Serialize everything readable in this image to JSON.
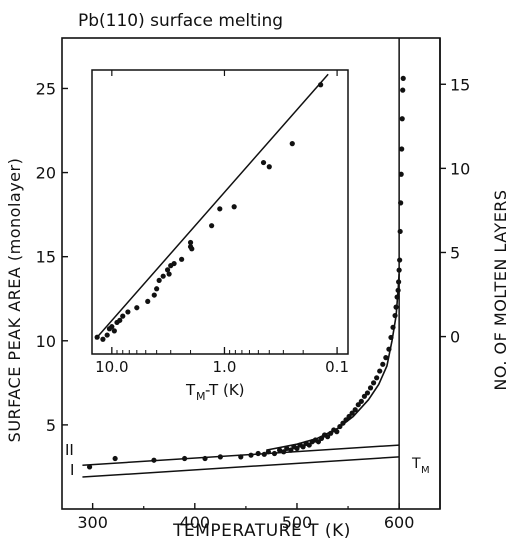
{
  "chart_data": [
    {
      "type": "scatter",
      "title": "Pb(110) surface melting",
      "xlabel": "TEMPERATURE  T  (K)",
      "ylabel": "SURFACE PEAK AREA (monolayer)",
      "ylabel_right": "NO. OF MOLTEN LAYERS",
      "xlim": [
        270,
        640
      ],
      "ylim": [
        0,
        28
      ],
      "x_ticks": [
        "300",
        "400",
        "500",
        "600"
      ],
      "y_ticks": [
        "5",
        "10",
        "15",
        "20",
        "25"
      ],
      "y2_ticks": [
        "0",
        "5",
        "10",
        "15"
      ],
      "y2_tick_positions_in_y_units": [
        10.25,
        15.25,
        20.25,
        25.25
      ],
      "annotations": {
        "line_I": "I",
        "line_II": "II",
        "melting_temp": "T",
        "melting_temp_sub": "M"
      },
      "reference_lines": [
        {
          "name": "I",
          "points": [
            [
              290,
              1.9
            ],
            [
              600,
              3.1
            ]
          ]
        },
        {
          "name": "II",
          "points": [
            [
              290,
              2.6
            ],
            [
              600,
              3.8
            ]
          ]
        }
      ],
      "vertical_line_x": 600,
      "fit_curve": [
        [
          470,
          3.5
        ],
        [
          500,
          3.85
        ],
        [
          520,
          4.2
        ],
        [
          540,
          4.8
        ],
        [
          555,
          5.5
        ],
        [
          570,
          6.5
        ],
        [
          580,
          7.4
        ],
        [
          588,
          8.5
        ],
        [
          593,
          10
        ],
        [
          597,
          11.5
        ],
        [
          599,
          13
        ],
        [
          600,
          14
        ]
      ],
      "points": [
        [
          297,
          2.5
        ],
        [
          322,
          3.0
        ],
        [
          360,
          2.9
        ],
        [
          390,
          3.0
        ],
        [
          410,
          3.0
        ],
        [
          425,
          3.1
        ],
        [
          445,
          3.1
        ],
        [
          455,
          3.2
        ],
        [
          462,
          3.3
        ],
        [
          468,
          3.25
        ],
        [
          472,
          3.4
        ],
        [
          478,
          3.3
        ],
        [
          483,
          3.5
        ],
        [
          487,
          3.4
        ],
        [
          490,
          3.6
        ],
        [
          494,
          3.5
        ],
        [
          497,
          3.7
        ],
        [
          500,
          3.6
        ],
        [
          503,
          3.8
        ],
        [
          506,
          3.7
        ],
        [
          509,
          3.9
        ],
        [
          512,
          3.8
        ],
        [
          515,
          4.0
        ],
        [
          518,
          4.1
        ],
        [
          521,
          4.0
        ],
        [
          524,
          4.2
        ],
        [
          527,
          4.4
        ],
        [
          530,
          4.3
        ],
        [
          533,
          4.5
        ],
        [
          536,
          4.7
        ],
        [
          539,
          4.6
        ],
        [
          542,
          4.9
        ],
        [
          545,
          5.1
        ],
        [
          548,
          5.3
        ],
        [
          551,
          5.5
        ],
        [
          554,
          5.7
        ],
        [
          557,
          5.9
        ],
        [
          560,
          6.2
        ],
        [
          563,
          6.4
        ],
        [
          566,
          6.7
        ],
        [
          569,
          6.9
        ],
        [
          572,
          7.2
        ],
        [
          575,
          7.5
        ],
        [
          578,
          7.8
        ],
        [
          581,
          8.2
        ],
        [
          584,
          8.6
        ],
        [
          587,
          9.0
        ],
        [
          590,
          9.5
        ],
        [
          592,
          10.2
        ],
        [
          594,
          10.8
        ],
        [
          596,
          11.5
        ],
        [
          597,
          12.0
        ],
        [
          598,
          12.6
        ],
        [
          599,
          13.0
        ],
        [
          599.5,
          13.5
        ],
        [
          600,
          14.2
        ],
        [
          600.5,
          14.8
        ],
        [
          601,
          16.5
        ],
        [
          601.5,
          18.2
        ],
        [
          602,
          19.9
        ],
        [
          602.5,
          21.4
        ],
        [
          603,
          23.2
        ],
        [
          603.5,
          24.9
        ],
        [
          604,
          25.6
        ]
      ]
    },
    {
      "type": "scatter",
      "title": "",
      "xlabel": "T",
      "xlabel_sub": "M",
      "xlabel_rest": "-T  (K)",
      "x_scale": "log",
      "x_reversed": true,
      "xlim": [
        15,
        0.08
      ],
      "x_ticks": [
        "10.0",
        "1.0",
        "0.1"
      ],
      "x_tick_values": [
        10,
        1,
        0.1
      ],
      "ylim": [
        6,
        19.5
      ],
      "fit_line": [
        [
          14,
          6.7
        ],
        [
          0.12,
          19.3
        ]
      ],
      "points": [
        [
          13.5,
          6.8
        ],
        [
          12,
          6.7
        ],
        [
          11,
          6.9
        ],
        [
          10.5,
          7.2
        ],
        [
          10,
          7.3
        ],
        [
          9.5,
          7.1
        ],
        [
          9,
          7.5
        ],
        [
          8.5,
          7.6
        ],
        [
          8,
          7.8
        ],
        [
          7.2,
          8.0
        ],
        [
          6,
          8.2
        ],
        [
          4.8,
          8.5
        ],
        [
          4.2,
          8.8
        ],
        [
          4,
          9.1
        ],
        [
          3.8,
          9.5
        ],
        [
          3.5,
          9.7
        ],
        [
          3.2,
          10.0
        ],
        [
          3.1,
          9.8
        ],
        [
          3.0,
          10.2
        ],
        [
          2.8,
          10.3
        ],
        [
          2.4,
          10.5
        ],
        [
          2.0,
          11.1
        ],
        [
          2.0,
          11.3
        ],
        [
          1.95,
          11.0
        ],
        [
          1.3,
          12.1
        ],
        [
          1.1,
          12.9
        ],
        [
          0.82,
          13.0
        ],
        [
          0.45,
          15.1
        ],
        [
          0.4,
          14.9
        ],
        [
          0.25,
          16.0
        ],
        [
          0.14,
          18.8
        ]
      ]
    }
  ]
}
